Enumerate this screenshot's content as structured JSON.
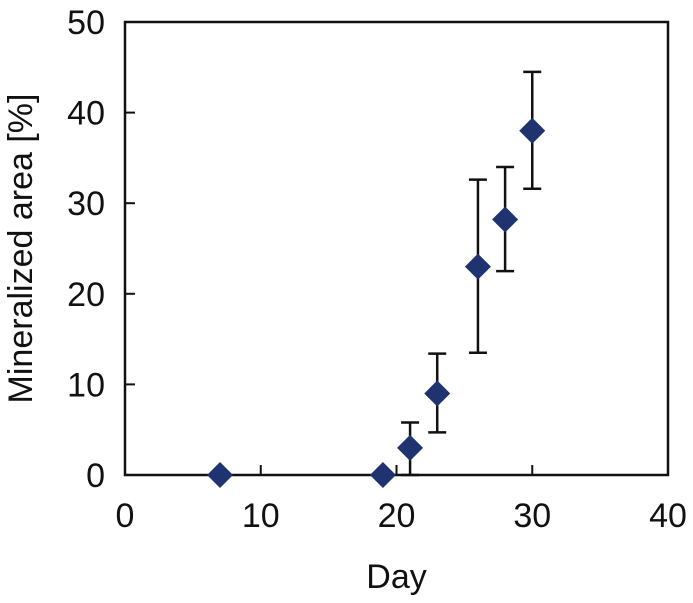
{
  "chart_data": {
    "type": "scatter",
    "xlabel": "Day",
    "ylabel": "Mineralized area [%]",
    "xlim": [
      0,
      40
    ],
    "ylim": [
      0,
      50
    ],
    "x_ticks": [
      0,
      10,
      20,
      30,
      40
    ],
    "y_ticks": [
      0,
      10,
      20,
      30,
      40,
      50
    ],
    "x_tick_labels": [
      "0",
      "10",
      "20",
      "30",
      "40"
    ],
    "y_tick_labels": [
      "0",
      "10",
      "20",
      "30",
      "40",
      "50"
    ],
    "grid": false,
    "legend": "none",
    "marker": "diamond",
    "marker_color": "#1f3370",
    "errorbar_color": "#111111",
    "series": [
      {
        "points": [
          {
            "x": 7,
            "y": 0,
            "err_low": 0,
            "err_high": 0
          },
          {
            "x": 19,
            "y": 0,
            "err_low": 0,
            "err_high": 0
          },
          {
            "x": 21,
            "y": 3,
            "err_low": 3.0,
            "err_high": 2.8
          },
          {
            "x": 23,
            "y": 9,
            "err_low": 4.3,
            "err_high": 4.4
          },
          {
            "x": 26,
            "y": 23,
            "err_low": 9.5,
            "err_high": 9.6
          },
          {
            "x": 28,
            "y": 28.2,
            "err_low": 5.7,
            "err_high": 5.8
          },
          {
            "x": 30,
            "y": 38,
            "err_low": 6.4,
            "err_high": 6.5
          }
        ]
      }
    ]
  }
}
